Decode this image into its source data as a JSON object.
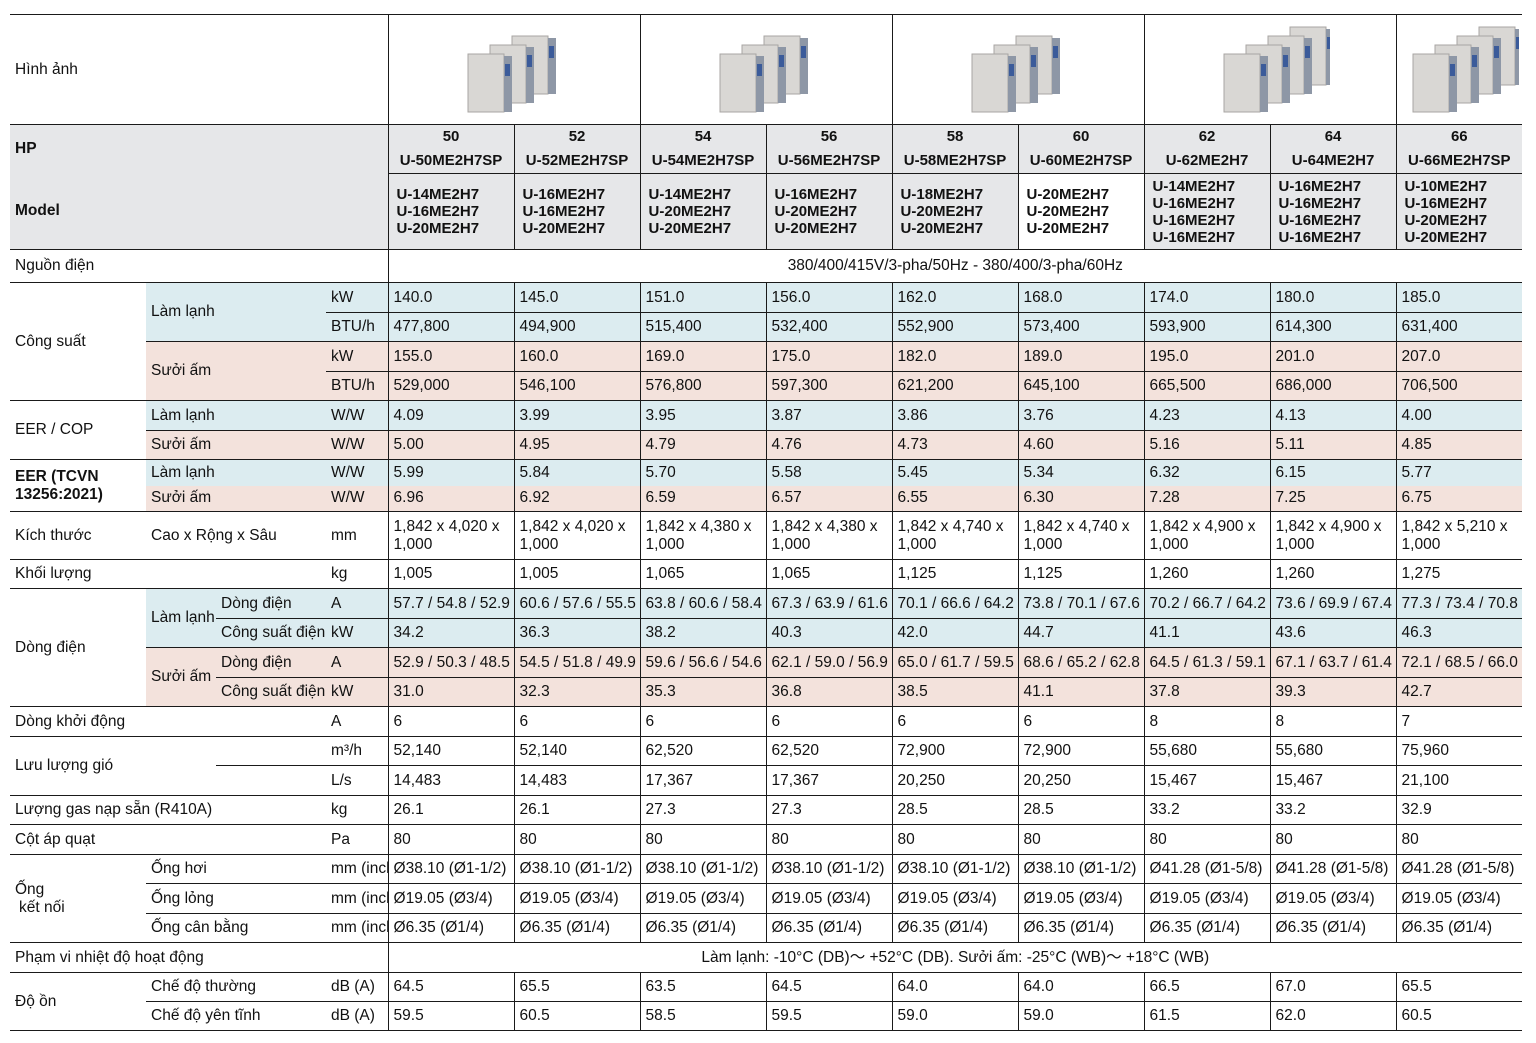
{
  "labels": {
    "image": "Hình ảnh",
    "hp": "HP",
    "model": "Model",
    "power_supply": "Nguồn điện",
    "capacity": "Công suất",
    "cooling": "Làm lạnh",
    "heating": "Sưởi ấm",
    "eer_cop": "EER / COP",
    "eer_tcvn": "EER (TCVN 13256:2021)",
    "dimensions": "Kích thước",
    "dimensions_sub": "Cao x Rộng x Sâu",
    "weight": "Khối lượng",
    "current": "Dòng điện",
    "running_current": "Dòng điện",
    "power_input": "Công suất điện",
    "starting_current": "Dòng khởi động",
    "airflow": "Lưu lượng gió",
    "refrigerant": "Lượng gas nạp sẵn (R410A)",
    "static_pressure": "Cột áp quạt",
    "piping_1": "Ống",
    "piping_2": "kết nối",
    "gas_pipe": "Ống hơi",
    "liquid_pipe": "Ống lỏng",
    "balance_pipe": "Ống cân bằng",
    "temp_range": "Phạm vi nhiệt độ hoạt động",
    "noise": "Độ ồn",
    "normal_mode": "Chế độ thường",
    "quiet_mode": "Chế độ yên tĩnh"
  },
  "units": {
    "kw": "kW",
    "btu": "BTU/h",
    "ww": "W/W",
    "mm": "mm",
    "kg": "kg",
    "a": "A",
    "m3h": "m³/h",
    "ls": "L/s",
    "pa": "Pa",
    "mm_in": "mm (inches)",
    "db": "dB (A)"
  },
  "power_supply_value": "380/400/415V/3-pha/50Hz - 380/400/3-pha/60Hz",
  "temp_range_value": "Làm lạnh: -10°C (DB)～ +52°C (DB). Sưởi ấm: -25°C (WB)～ +18°C (WB)",
  "columns": [
    {
      "hp": "50",
      "model": "U-50ME2H7SP",
      "combo": [
        "U-14ME2H7",
        "U-16ME2H7",
        "U-20ME2H7"
      ],
      "cool_kw": "140.0",
      "cool_btu": "477,800",
      "heat_kw": "155.0",
      "heat_btu": "529,000",
      "eer": "4.09",
      "cop": "5.00",
      "tcvn_cool": "5.99",
      "tcvn_heat": "6.96",
      "dims": "1,842 x 4,020 x 1,000",
      "weight": "1,005",
      "cool_a": "57.7 / 54.8 / 52.9",
      "cool_pi": "34.2",
      "heat_a": "52.9 / 50.3 / 48.5",
      "heat_pi": "31.0",
      "start_a": "6",
      "air_m3h": "52,140",
      "air_ls": "14,483",
      "gas": "26.1",
      "pa": "80",
      "gas_pipe": "Ø38.10 (Ø1-1/2)",
      "liq_pipe": "Ø19.05 (Ø3/4)",
      "bal_pipe": "Ø6.35 (Ø1/4)",
      "db_n": "64.5",
      "db_q": "59.5"
    },
    {
      "hp": "52",
      "model": "U-52ME2H7SP",
      "combo": [
        "U-16ME2H7",
        "U-16ME2H7",
        "U-20ME2H7"
      ],
      "cool_kw": "145.0",
      "cool_btu": "494,900",
      "heat_kw": "160.0",
      "heat_btu": "546,100",
      "eer": "3.99",
      "cop": "4.95",
      "tcvn_cool": "5.84",
      "tcvn_heat": "6.92",
      "dims": "1,842 x 4,020 x 1,000",
      "weight": "1,005",
      "cool_a": "60.6 / 57.6 / 55.5",
      "cool_pi": "36.3",
      "heat_a": "54.5 / 51.8 / 49.9",
      "heat_pi": "32.3",
      "start_a": "6",
      "air_m3h": "52,140",
      "air_ls": "14,483",
      "gas": "26.1",
      "pa": "80",
      "gas_pipe": "Ø38.10 (Ø1-1/2)",
      "liq_pipe": "Ø19.05 (Ø3/4)",
      "bal_pipe": "Ø6.35 (Ø1/4)",
      "db_n": "65.5",
      "db_q": "60.5"
    },
    {
      "hp": "54",
      "model": "U-54ME2H7SP",
      "combo": [
        "U-14ME2H7",
        "U-20ME2H7",
        "U-20ME2H7"
      ],
      "cool_kw": "151.0",
      "cool_btu": "515,400",
      "heat_kw": "169.0",
      "heat_btu": "576,800",
      "eer": "3.95",
      "cop": "4.79",
      "tcvn_cool": "5.70",
      "tcvn_heat": "6.59",
      "dims": "1,842 x 4,380 x 1,000",
      "weight": "1,065",
      "cool_a": "63.8 / 60.6 / 58.4",
      "cool_pi": "38.2",
      "heat_a": "59.6 / 56.6 / 54.6",
      "heat_pi": "35.3",
      "start_a": "6",
      "air_m3h": "62,520",
      "air_ls": "17,367",
      "gas": "27.3",
      "pa": "80",
      "gas_pipe": "Ø38.10 (Ø1-1/2)",
      "liq_pipe": "Ø19.05 (Ø3/4)",
      "bal_pipe": "Ø6.35 (Ø1/4)",
      "db_n": "63.5",
      "db_q": "58.5"
    },
    {
      "hp": "56",
      "model": "U-56ME2H7SP",
      "combo": [
        "U-16ME2H7",
        "U-20ME2H7",
        "U-20ME2H7"
      ],
      "cool_kw": "156.0",
      "cool_btu": "532,400",
      "heat_kw": "175.0",
      "heat_btu": "597,300",
      "eer": "3.87",
      "cop": "4.76",
      "tcvn_cool": "5.58",
      "tcvn_heat": "6.57",
      "dims": "1,842 x 4,380 x 1,000",
      "weight": "1,065",
      "cool_a": "67.3 / 63.9 / 61.6",
      "cool_pi": "40.3",
      "heat_a": "62.1 / 59.0 / 56.9",
      "heat_pi": "36.8",
      "start_a": "6",
      "air_m3h": "62,520",
      "air_ls": "17,367",
      "gas": "27.3",
      "pa": "80",
      "gas_pipe": "Ø38.10 (Ø1-1/2)",
      "liq_pipe": "Ø19.05 (Ø3/4)",
      "bal_pipe": "Ø6.35 (Ø1/4)",
      "db_n": "64.5",
      "db_q": "59.5"
    },
    {
      "hp": "58",
      "model": "U-58ME2H7SP",
      "combo": [
        "U-18ME2H7",
        "U-20ME2H7",
        "U-20ME2H7"
      ],
      "cool_kw": "162.0",
      "cool_btu": "552,900",
      "heat_kw": "182.0",
      "heat_btu": "621,200",
      "eer": "3.86",
      "cop": "4.73",
      "tcvn_cool": "5.45",
      "tcvn_heat": "6.55",
      "dims": "1,842 x 4,740 x 1,000",
      "weight": "1,125",
      "cool_a": "70.1 / 66.6 / 64.2",
      "cool_pi": "42.0",
      "heat_a": "65.0 / 61.7 / 59.5",
      "heat_pi": "38.5",
      "start_a": "6",
      "air_m3h": "72,900",
      "air_ls": "20,250",
      "gas": "28.5",
      "pa": "80",
      "gas_pipe": "Ø38.10 (Ø1-1/2)",
      "liq_pipe": "Ø19.05 (Ø3/4)",
      "bal_pipe": "Ø6.35 (Ø1/4)",
      "db_n": "64.0",
      "db_q": "59.0"
    },
    {
      "hp": "60",
      "model": "U-60ME2H7SP",
      "combo": [
        "U-20ME2H7",
        "U-20ME2H7",
        "U-20ME2H7"
      ],
      "cool_kw": "168.0",
      "cool_btu": "573,400",
      "heat_kw": "189.0",
      "heat_btu": "645,100",
      "eer": "3.76",
      "cop": "4.60",
      "tcvn_cool": "5.34",
      "tcvn_heat": "6.30",
      "dims": "1,842 x 4,740 x 1,000",
      "weight": "1,125",
      "cool_a": "73.8 / 70.1 / 67.6",
      "cool_pi": "44.7",
      "heat_a": "68.6 / 65.2 / 62.8",
      "heat_pi": "41.1",
      "start_a": "6",
      "air_m3h": "72,900",
      "air_ls": "20,250",
      "gas": "28.5",
      "pa": "80",
      "gas_pipe": "Ø38.10 (Ø1-1/2)",
      "liq_pipe": "Ø19.05 (Ø3/4)",
      "bal_pipe": "Ø6.35 (Ø1/4)",
      "db_n": "64.0",
      "db_q": "59.0"
    },
    {
      "hp": "62",
      "model": "U-62ME2H7",
      "combo": [
        "U-14ME2H7",
        "U-16ME2H7",
        "U-16ME2H7",
        "U-16ME2H7"
      ],
      "cool_kw": "174.0",
      "cool_btu": "593,900",
      "heat_kw": "195.0",
      "heat_btu": "665,500",
      "eer": "4.23",
      "cop": "5.16",
      "tcvn_cool": "6.32",
      "tcvn_heat": "7.28",
      "dims": "1,842 x 4,900 x 1,000",
      "weight": "1,260",
      "cool_a": "70.2 / 66.7 / 64.2",
      "cool_pi": "41.1",
      "heat_a": "64.5 / 61.3 / 59.1",
      "heat_pi": "37.8",
      "start_a": "8",
      "air_m3h": "55,680",
      "air_ls": "15,467",
      "gas": "33.2",
      "pa": "80",
      "gas_pipe": "Ø41.28 (Ø1-5/8)",
      "liq_pipe": "Ø19.05 (Ø3/4)",
      "bal_pipe": "Ø6.35 (Ø1/4)",
      "db_n": "66.5",
      "db_q": "61.5"
    },
    {
      "hp": "64",
      "model": "U-64ME2H7",
      "combo": [
        "U-16ME2H7",
        "U-16ME2H7",
        "U-16ME2H7",
        "U-16ME2H7"
      ],
      "cool_kw": "180.0",
      "cool_btu": "614,300",
      "heat_kw": "201.0",
      "heat_btu": "686,000",
      "eer": "4.13",
      "cop": "5.11",
      "tcvn_cool": "6.15",
      "tcvn_heat": "7.25",
      "dims": "1,842 x 4,900 x 1,000",
      "weight": "1,260",
      "cool_a": "73.6 / 69.9 / 67.4",
      "cool_pi": "43.6",
      "heat_a": "67.1 / 63.7 / 61.4",
      "heat_pi": "39.3",
      "start_a": "8",
      "air_m3h": "55,680",
      "air_ls": "15,467",
      "gas": "33.2",
      "pa": "80",
      "gas_pipe": "Ø41.28 (Ø1-5/8)",
      "liq_pipe": "Ø19.05 (Ø3/4)",
      "bal_pipe": "Ø6.35 (Ø1/4)",
      "db_n": "67.0",
      "db_q": "62.0"
    },
    {
      "hp": "66",
      "model": "U-66ME2H7SP",
      "combo": [
        "U-10ME2H7",
        "U-16ME2H7",
        "U-20ME2H7",
        "U-20ME2H7"
      ],
      "cool_kw": "185.0",
      "cool_btu": "631,400",
      "heat_kw": "207.0",
      "heat_btu": "706,500",
      "eer": "4.00",
      "cop": "4.85",
      "tcvn_cool": "5.77",
      "tcvn_heat": "6.75",
      "dims": "1,842 x 5,210 x 1,000",
      "weight": "1,275",
      "cool_a": "77.3 / 73.4 / 70.8",
      "cool_pi": "46.3",
      "heat_a": "72.1 / 68.5 / 66.0",
      "heat_pi": "42.7",
      "start_a": "7",
      "air_m3h": "75,960",
      "air_ls": "21,100",
      "gas": "32.9",
      "pa": "80",
      "gas_pipe": "Ø41.28 (Ø1-5/8)",
      "liq_pipe": "Ø19.05 (Ø3/4)",
      "bal_pipe": "Ø6.35 (Ø1/4)",
      "db_n": "65.5",
      "db_q": "60.5"
    }
  ],
  "image_groups": [
    {
      "units": 3,
      "icon": "outdoor-unit-icon"
    },
    {
      "units": 3,
      "icon": "outdoor-unit-icon"
    },
    {
      "units": 3,
      "icon": "outdoor-unit-icon"
    },
    {
      "units": 4,
      "icon": "outdoor-unit-icon"
    },
    {
      "units": 4,
      "icon": "outdoor-unit-icon"
    }
  ]
}
